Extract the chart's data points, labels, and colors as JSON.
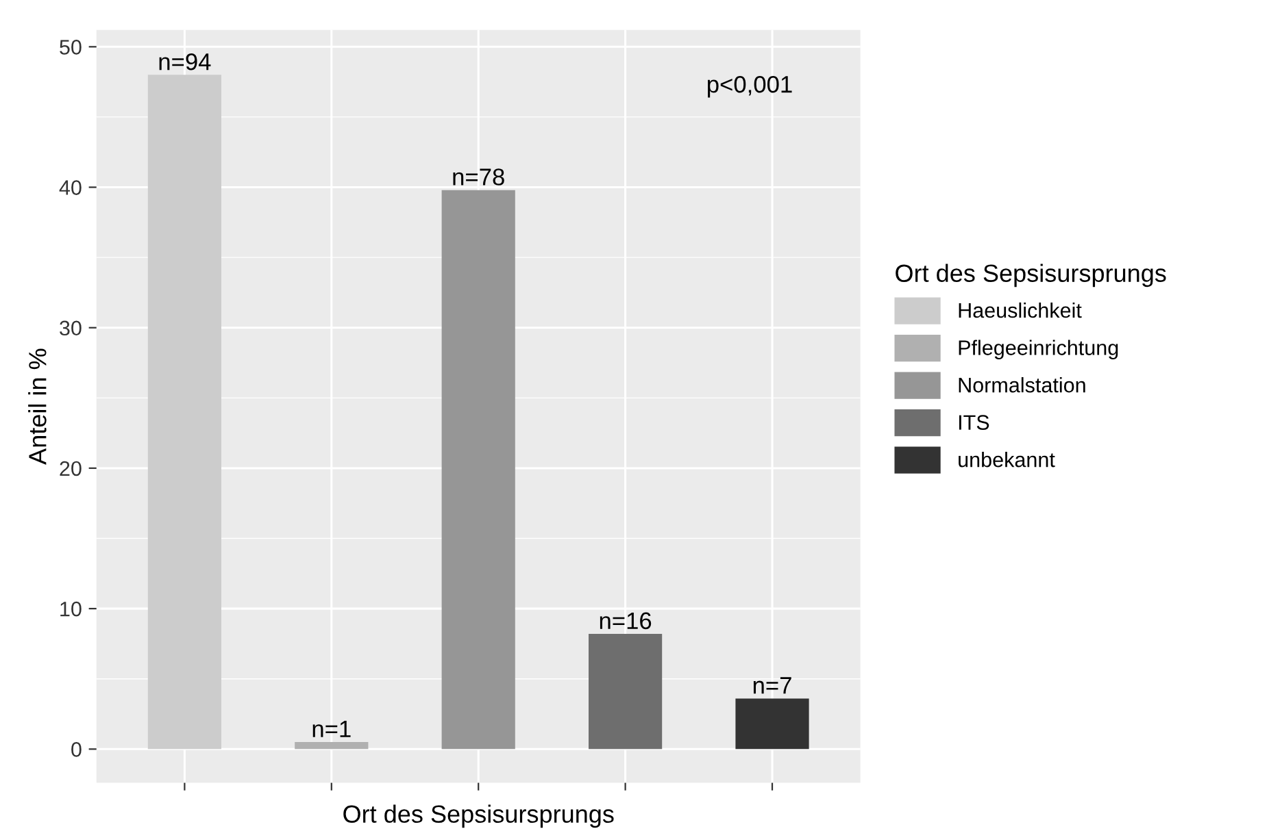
{
  "chart_data": {
    "type": "bar",
    "xlabel": "Ort des Sepsisursprungs",
    "ylabel": "Anteil in %",
    "legend_title": "Ort des Sepsisursprungs",
    "categories": [
      null,
      null,
      null,
      null,
      null
    ],
    "series": [
      {
        "name": "Haeuslichkeit",
        "color": "#cccccc",
        "values": [
          48.0,
          null,
          null,
          null,
          null
        ]
      },
      {
        "name": "Pflegeeinrichtung",
        "color": "#b0b0b0",
        "values": [
          null,
          0.5,
          null,
          null,
          null
        ]
      },
      {
        "name": "Normalstation",
        "color": "#969696",
        "values": [
          null,
          null,
          39.8,
          null,
          null
        ]
      },
      {
        "name": "ITS",
        "color": "#6e6e6e",
        "values": [
          null,
          null,
          null,
          8.2,
          null
        ]
      },
      {
        "name": "unbekannt",
        "color": "#333333",
        "values": [
          null,
          null,
          null,
          null,
          3.6
        ]
      }
    ],
    "ylim": [
      -2.4,
      51.2
    ],
    "yticks": [
      0,
      {
        "value": 5,
        "label": null
      },
      10,
      {
        "value": 15,
        "label": null
      },
      20,
      {
        "value": 25,
        "label": null
      },
      30,
      {
        "value": 35,
        "label": null
      },
      40,
      {
        "value": 45,
        "label": null
      },
      50
    ],
    "annotations": [
      {
        "text": "n=94",
        "y": 48.0
      },
      {
        "text": "n=1",
        "y": 0.5
      },
      {
        "text": "n=78",
        "y": 39.8
      },
      {
        "text": "n=16",
        "y": 8.2
      },
      {
        "text": "n=7",
        "y": 3.6
      },
      "p<0,001"
    ],
    "grid": true,
    "legend": "right"
  }
}
